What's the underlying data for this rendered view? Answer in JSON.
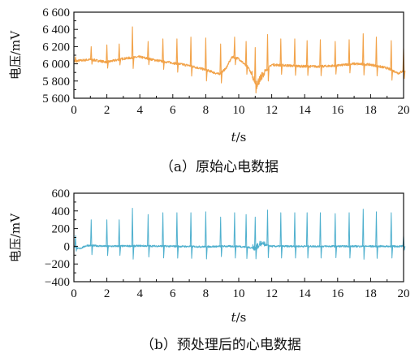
{
  "colors": {
    "panel_a": "#F2A34A",
    "panel_b": "#4FB0CE",
    "axis": "#111111"
  },
  "chart_data": [
    {
      "type": "line",
      "caption": "（a）原始心电数据",
      "xlabel_italic": "t",
      "xlabel_rest": "/s",
      "ylabel": "电压/mV",
      "xlim": [
        0,
        20
      ],
      "ylim": [
        5600,
        6600
      ],
      "xticks": [
        "0",
        "2",
        "4",
        "6",
        "8",
        "10",
        "12",
        "14",
        "16",
        "18",
        "20"
      ],
      "yticks": [
        "5 600",
        "5 800",
        "6 000",
        "6 200",
        "6 400",
        "6 600"
      ],
      "series": [
        {
          "color": "#F2A34A",
          "baseline": [
            [
              0,
              6030
            ],
            [
              0.5,
              6040
            ],
            [
              1,
              6050
            ],
            [
              2,
              6020
            ],
            [
              3,
              6060
            ],
            [
              4,
              6080
            ],
            [
              5,
              6040
            ],
            [
              6,
              6010
            ],
            [
              7,
              5980
            ],
            [
              8,
              5930
            ],
            [
              8.8,
              5880
            ],
            [
              9.2,
              5940
            ],
            [
              9.6,
              6080
            ],
            [
              10,
              6060
            ],
            [
              10.6,
              5950
            ],
            [
              11.1,
              5760
            ],
            [
              11.5,
              5890
            ],
            [
              12,
              5990
            ],
            [
              13,
              5980
            ],
            [
              14,
              5970
            ],
            [
              15,
              5970
            ],
            [
              16,
              5980
            ],
            [
              17,
              6000
            ],
            [
              18,
              5990
            ],
            [
              19,
              5950
            ],
            [
              19.7,
              5890
            ],
            [
              20,
              5920
            ]
          ],
          "beats": [
            [
              0.1,
              6080
            ],
            [
              1.05,
              6200
            ],
            [
              2.0,
              6220
            ],
            [
              2.75,
              6230
            ],
            [
              3.55,
              6430
            ],
            [
              4.5,
              6260
            ],
            [
              5.4,
              6290
            ],
            [
              6.25,
              6290
            ],
            [
              7.1,
              6310
            ],
            [
              8.0,
              6300
            ],
            [
              8.9,
              6230
            ],
            [
              9.75,
              6310
            ],
            [
              10.45,
              6260
            ],
            [
              11.0,
              6190
            ],
            [
              11.75,
              6340
            ],
            [
              12.55,
              6290
            ],
            [
              13.4,
              6290
            ],
            [
              14.15,
              6270
            ],
            [
              14.95,
              6280
            ],
            [
              15.85,
              6260
            ],
            [
              16.7,
              6280
            ],
            [
              17.55,
              6350
            ],
            [
              18.35,
              6310
            ],
            [
              19.25,
              6270
            ],
            [
              20.0,
              6180
            ]
          ]
        }
      ]
    },
    {
      "type": "line",
      "caption": "（b）预处理后的心电数据",
      "xlabel_italic": "t",
      "xlabel_rest": "/s",
      "ylabel": "电压/mV",
      "xlim": [
        0,
        20
      ],
      "ylim": [
        -400,
        600
      ],
      "xticks": [
        "0",
        "2",
        "4",
        "6",
        "8",
        "10",
        "12",
        "14",
        "16",
        "18",
        "20"
      ],
      "yticks": [
        "−400",
        "−200",
        "0",
        "200",
        "400",
        "600"
      ],
      "series": [
        {
          "color": "#4FB0CE",
          "baseline": [
            [
              0,
              0
            ],
            [
              0.3,
              -30
            ],
            [
              0.8,
              10
            ],
            [
              2,
              0
            ],
            [
              4,
              5
            ],
            [
              6,
              0
            ],
            [
              8,
              -5
            ],
            [
              9,
              0
            ],
            [
              10,
              0
            ],
            [
              11,
              -20
            ],
            [
              11.3,
              30
            ],
            [
              12,
              0
            ],
            [
              14,
              0
            ],
            [
              16,
              0
            ],
            [
              18,
              0
            ],
            [
              20,
              0
            ]
          ],
          "beats": [
            [
              0.1,
              120
            ],
            [
              1.05,
              300
            ],
            [
              2.0,
              300
            ],
            [
              2.75,
              300
            ],
            [
              3.55,
              430
            ],
            [
              4.5,
              360
            ],
            [
              5.4,
              380
            ],
            [
              6.25,
              380
            ],
            [
              7.1,
              380
            ],
            [
              8.0,
              390
            ],
            [
              8.9,
              330
            ],
            [
              9.75,
              380
            ],
            [
              10.45,
              360
            ],
            [
              11.0,
              330
            ],
            [
              11.75,
              410
            ],
            [
              12.55,
              380
            ],
            [
              13.4,
              380
            ],
            [
              14.15,
              380
            ],
            [
              14.95,
              380
            ],
            [
              15.85,
              370
            ],
            [
              16.7,
              380
            ],
            [
              17.55,
              420
            ],
            [
              18.35,
              390
            ],
            [
              19.25,
              380
            ],
            [
              20.0,
              120
            ]
          ]
        }
      ]
    }
  ]
}
